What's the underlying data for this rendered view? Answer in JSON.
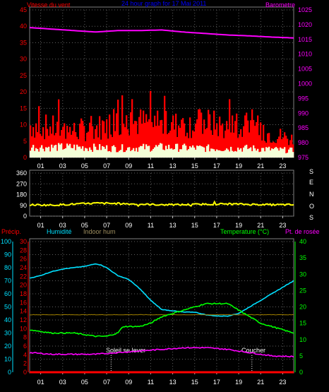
{
  "chart_data": [
    {
      "type": "bar",
      "title": "24 hour graph for 17 Mai 2011",
      "left_label": "Vitesse du vent",
      "right_label": "Barometre",
      "y_left": {
        "min": 0,
        "max": 45,
        "ticks": [
          0,
          5,
          10,
          15,
          20,
          25,
          30,
          35,
          40,
          45
        ]
      },
      "y_right": {
        "min": 975,
        "max": 1025,
        "ticks": [
          975,
          980,
          985,
          990,
          995,
          1000,
          1005,
          1010,
          1015,
          1020,
          1025
        ]
      },
      "x_ticks": [
        "01",
        "03",
        "05",
        "07",
        "09",
        "11",
        "13",
        "15",
        "17",
        "19",
        "21",
        "23"
      ],
      "grid": true,
      "series": [
        {
          "name": "Vitesse du vent",
          "color": "#ff0000",
          "type": "bar",
          "profile": {
            "x": [
              0,
              2,
              4,
              6,
              8,
              10,
              12,
              14,
              16,
              18,
              20,
              22,
              24
            ],
            "avg": [
              11,
              10,
              9,
              10,
              12,
              12,
              11,
              11,
              12,
              10,
              9,
              8,
              6
            ],
            "peak": [
              22,
              19,
              17,
              18,
              21,
              22,
              19,
              20,
              21,
              19,
              16,
              14,
              12
            ]
          }
        },
        {
          "name": "",
          "color": "#f4ffd8",
          "type": "bar",
          "profile": {
            "x": [
              0,
              4,
              8,
              12,
              16,
              20,
              24
            ],
            "values": [
              4.5,
              4.5,
              4,
              4.5,
              4,
              4,
              3
            ]
          }
        },
        {
          "name": "Barometre",
          "color": "#ff00ff",
          "type": "line",
          "x": [
            0,
            2,
            4,
            6,
            8,
            10,
            12,
            14,
            16,
            18,
            20,
            22,
            24
          ],
          "y": [
            1019,
            1018.5,
            1018,
            1017.5,
            1018,
            1018,
            1018.2,
            1017.5,
            1017,
            1016.5,
            1016.2,
            1015.8,
            1015.5
          ]
        }
      ]
    },
    {
      "type": "line",
      "right_letters": [
        "S",
        "E",
        "N",
        "O",
        "S"
      ],
      "y": {
        "min": 0,
        "max": 360,
        "ticks": [
          0,
          90,
          180,
          270,
          360
        ]
      },
      "x_ticks": [
        "01",
        "03",
        "05",
        "07",
        "09",
        "11",
        "13",
        "15",
        "17",
        "19",
        "21",
        "23"
      ],
      "grid": true,
      "series": [
        {
          "name": "",
          "color": "#ffff00",
          "x": [
            0,
            2,
            4,
            6,
            8,
            10,
            12,
            14,
            16,
            18,
            20,
            22,
            24
          ],
          "y": [
            95,
            92,
            100,
            108,
            105,
            100,
            95,
            95,
            100,
            102,
            98,
            95,
            95
          ]
        }
      ]
    },
    {
      "type": "line",
      "labels": {
        "precip": "Précip.",
        "humidite": "Humidité",
        "indoor": "Indoor hum",
        "temperature": "Temperature (°C)",
        "rosee": "Pt. de rosée"
      },
      "axis_humidity": {
        "min": 0,
        "max": 100,
        "ticks": [
          0,
          10,
          20,
          30,
          40,
          50,
          60,
          70,
          80,
          90,
          100
        ]
      },
      "axis_precip": {
        "min": 0,
        "max": 30,
        "ticks": [
          0,
          2,
          4,
          6,
          8,
          10,
          12,
          14,
          16,
          18,
          20,
          22,
          24,
          26,
          28,
          30
        ]
      },
      "axis_temp": {
        "min": 0,
        "max": 40,
        "ticks": [
          0,
          5,
          10,
          15,
          20,
          25,
          30,
          35,
          40
        ]
      },
      "x_ticks": [
        "01",
        "03",
        "05",
        "07",
        "09",
        "11",
        "13",
        "15",
        "17",
        "19",
        "21",
        "23"
      ],
      "annotations": [
        {
          "text": "Soleil se lever",
          "x": 7.4
        },
        {
          "text": "Coucher",
          "x": 20.2
        }
      ],
      "grid": true,
      "series": [
        {
          "name": "Humidité",
          "color": "#00e0ff",
          "x": [
            0,
            1,
            2,
            3,
            4,
            5,
            6,
            6.5,
            7,
            8,
            9,
            10,
            11,
            12,
            13,
            14,
            15,
            16,
            17,
            18,
            19,
            20,
            21,
            22,
            23,
            24
          ],
          "y": [
            72,
            74,
            77,
            79,
            80,
            81,
            83,
            82,
            80,
            74,
            71,
            64,
            55,
            48,
            47,
            46,
            46,
            44,
            43,
            43,
            45,
            50,
            55,
            60,
            65,
            70
          ]
        },
        {
          "name": "Indoor hum",
          "color": "#a08000",
          "x": [
            0,
            4,
            8,
            12,
            16,
            20,
            24
          ],
          "y": [
            44,
            44,
            44,
            44,
            44,
            44,
            44
          ]
        },
        {
          "name": "Temperature (°C)",
          "color": "#00ff00",
          "x": [
            0,
            1,
            2,
            3,
            4,
            5,
            6,
            7,
            7.5,
            8,
            8.5,
            9,
            10,
            11,
            12,
            13,
            14,
            15,
            16,
            17,
            18,
            19,
            20,
            21,
            22,
            23,
            24
          ],
          "y": [
            13,
            12.5,
            12,
            12,
            12,
            11.5,
            11,
            11,
            11.5,
            12,
            14,
            14,
            14,
            15,
            17,
            18,
            19,
            20,
            21,
            21,
            21,
            19,
            17,
            15,
            14,
            13,
            12
          ]
        },
        {
          "name": "Pt. de rosée",
          "color": "#ff00ff",
          "x": [
            0,
            2,
            4,
            6,
            8,
            10,
            12,
            14,
            16,
            18,
            20,
            22,
            24
          ],
          "y": [
            6,
            5.5,
            5.5,
            5.5,
            6,
            6.5,
            7,
            7.5,
            7.5,
            7,
            6,
            5,
            4.8
          ]
        },
        {
          "name": "Précip.",
          "color": "#ff0000",
          "x": [
            0,
            24
          ],
          "y": [
            0,
            0
          ]
        }
      ]
    }
  ]
}
